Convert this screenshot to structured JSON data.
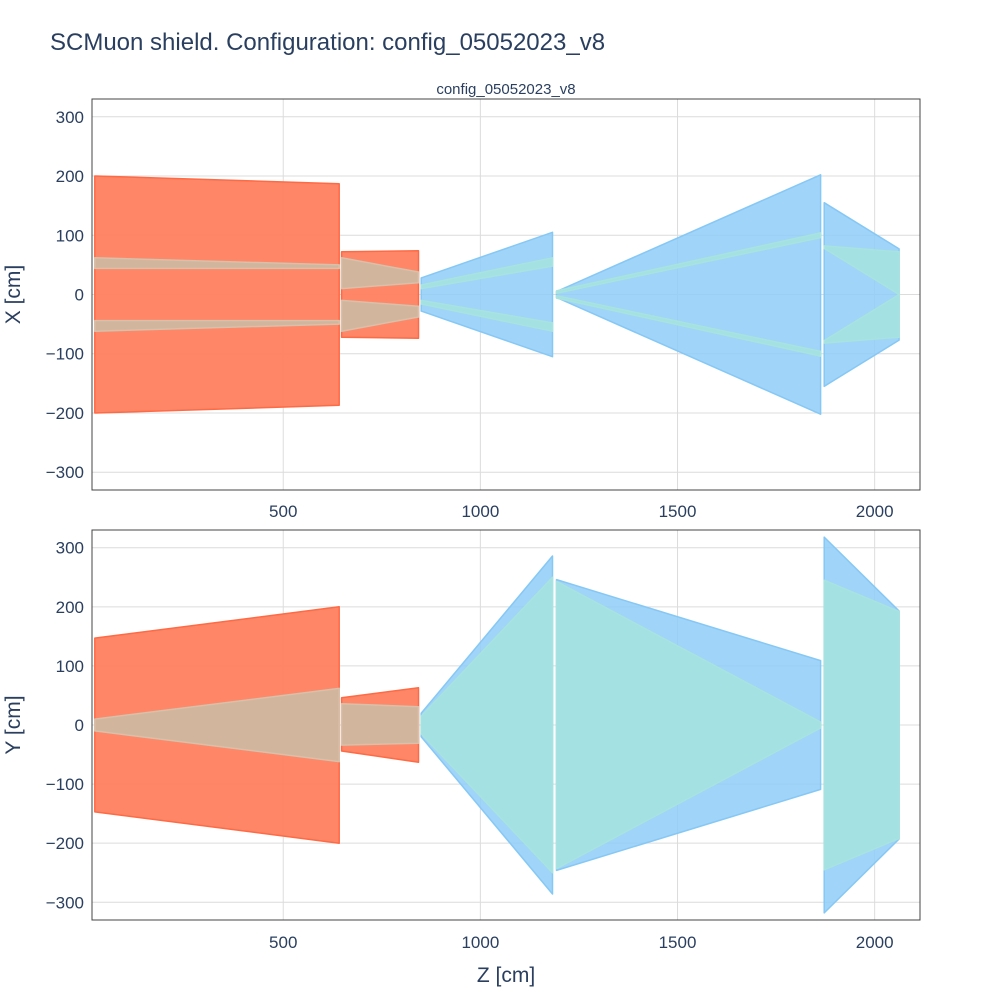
{
  "chart_data": {
    "type": "area",
    "title": "SCMuon shield. Configuration: config_05052023_v8",
    "subtitle": "config_05052023_v8",
    "xlabel": "Z [cm]",
    "grid": true,
    "colors": {
      "iron": "#ff7f5e",
      "iron_edge": "#ff6a45",
      "magnet": "#8fcdf7",
      "magnet_edge": "#86c8f5",
      "field_in_iron": "#d0b7a0",
      "field_in_magnet": "#a3e2e0"
    },
    "x_ticks": [
      "500",
      "1000",
      "1500",
      "2000"
    ],
    "xlim": [
      15,
      2115
    ],
    "panels": [
      {
        "ylabel": "X [cm]",
        "ylim": [
          -330,
          330
        ],
        "y_ticks": [
          "300",
          "200",
          "100",
          "0",
          "−100",
          "−200",
          "−300"
        ],
        "y_tick_values": [
          300,
          200,
          100,
          0,
          -100,
          -200,
          -300
        ],
        "shapes": [
          {
            "name": "iron-block-1-outer",
            "kind": "iron",
            "z": [
              22,
              22,
              642,
              642
            ],
            "y": [
              -200,
              200,
              187,
              -187
            ]
          },
          {
            "name": "iron-block-1-gap-upper",
            "kind": "field_in_iron",
            "z": [
              22,
              22,
              642,
              642
            ],
            "y": [
              44,
              62,
              50,
              44
            ]
          },
          {
            "name": "iron-block-1-gap-lower",
            "kind": "field_in_iron",
            "z": [
              22,
              22,
              642,
              642
            ],
            "y": [
              -62,
              -44,
              -44,
              -50
            ]
          },
          {
            "name": "iron-block-2-outer",
            "kind": "iron",
            "z": [
              648,
              648,
              843,
              843
            ],
            "y": [
              -72,
              72,
              74,
              -74
            ]
          },
          {
            "name": "iron-block-2-gap-upper",
            "kind": "field_in_iron",
            "z": [
              648,
              648,
              843,
              843
            ],
            "y": [
              10,
              62,
              38,
              20
            ]
          },
          {
            "name": "iron-block-2-gap-lower",
            "kind": "field_in_iron",
            "z": [
              648,
              648,
              843,
              843
            ],
            "y": [
              -62,
              -10,
              -20,
              -38
            ]
          },
          {
            "name": "magnet-1-outer",
            "kind": "magnet",
            "z": [
              850,
              850,
              1183,
              1183
            ],
            "y": [
              -28,
              28,
              105,
              -105
            ]
          },
          {
            "name": "magnet-1-field-upper",
            "kind": "field_in_magnet",
            "z": [
              850,
              850,
              1183,
              1183
            ],
            "y": [
              10,
              16,
              62,
              48
            ]
          },
          {
            "name": "magnet-1-field-lower",
            "kind": "field_in_magnet",
            "z": [
              850,
              850,
              1183,
              1183
            ],
            "y": [
              -16,
              -10,
              -48,
              -62
            ]
          },
          {
            "name": "magnet-2-outer",
            "kind": "magnet",
            "z": [
              1193,
              1193,
              1863,
              1863
            ],
            "y": [
              -5,
              5,
              202,
              -202
            ]
          },
          {
            "name": "magnet-2-field-upper",
            "kind": "field_in_magnet",
            "z": [
              1193,
              1193,
              1863,
              1863
            ],
            "y": [
              2,
              6,
              104,
              96
            ]
          },
          {
            "name": "magnet-2-field-lower",
            "kind": "field_in_magnet",
            "z": [
              1193,
              1193,
              1863,
              1863
            ],
            "y": [
              -6,
              -2,
              -96,
              -104
            ]
          },
          {
            "name": "magnet-3-outer",
            "kind": "magnet",
            "z": [
              1872,
              1872,
              2062,
              2062
            ],
            "y": [
              -155,
              155,
              77,
              -77
            ]
          },
          {
            "name": "magnet-3-field-upper",
            "kind": "field_in_magnet",
            "z": [
              1872,
              1872,
              2062,
              2062
            ],
            "y": [
              78,
              82,
              72,
              0
            ]
          },
          {
            "name": "magnet-3-field-lower",
            "kind": "field_in_magnet",
            "z": [
              1872,
              1872,
              2062,
              2062
            ],
            "y": [
              -82,
              -78,
              0,
              -72
            ]
          }
        ]
      },
      {
        "ylabel": "Y [cm]",
        "ylim": [
          -330,
          330
        ],
        "y_ticks": [
          "300",
          "200",
          "100",
          "0",
          "−100",
          "−200",
          "−300"
        ],
        "y_tick_values": [
          300,
          200,
          100,
          0,
          -100,
          -200,
          -300
        ],
        "shapes": [
          {
            "name": "iron-block-1-outer",
            "kind": "iron",
            "z": [
              22,
              22,
              642,
              642
            ],
            "y": [
              -147,
              147,
              200,
              -200
            ]
          },
          {
            "name": "iron-block-1-field",
            "kind": "field_in_iron",
            "z": [
              22,
              22,
              642,
              642
            ],
            "y": [
              -10,
              10,
              62,
              -62
            ]
          },
          {
            "name": "iron-block-2-outer",
            "kind": "iron",
            "z": [
              648,
              648,
              843,
              843
            ],
            "y": [
              -44,
              46,
              63,
              -63
            ]
          },
          {
            "name": "iron-block-2-field",
            "kind": "field_in_iron",
            "z": [
              648,
              648,
              843,
              843
            ],
            "y": [
              -34,
              36,
              31,
              -31
            ]
          },
          {
            "name": "magnet-1-outer",
            "kind": "magnet",
            "z": [
              850,
              850,
              1183,
              1183
            ],
            "y": [
              -20,
              20,
              286,
              -286
            ]
          },
          {
            "name": "magnet-1-field",
            "kind": "field_in_magnet",
            "z": [
              850,
              850,
              1183,
              1183
            ],
            "y": [
              -15,
              15,
              250,
              -250
            ]
          },
          {
            "name": "magnet-2-outer",
            "kind": "magnet",
            "z": [
              1193,
              1193,
              1863,
              1863
            ],
            "y": [
              -246,
              246,
              109,
              -109
            ]
          },
          {
            "name": "magnet-2-field",
            "kind": "field_in_magnet",
            "z": [
              1193,
              1193,
              1863,
              1863
            ],
            "y": [
              -243,
              243,
              5,
              -5
            ]
          },
          {
            "name": "magnet-3-outer",
            "kind": "magnet",
            "z": [
              1872,
              1872,
              2062,
              2062
            ],
            "y": [
              -318,
              318,
              193,
              -193
            ]
          },
          {
            "name": "magnet-3-field",
            "kind": "field_in_magnet",
            "z": [
              1872,
              1872,
              2062,
              2062
            ],
            "y": [
              -245,
              245,
              192,
              -192
            ]
          }
        ]
      }
    ]
  }
}
